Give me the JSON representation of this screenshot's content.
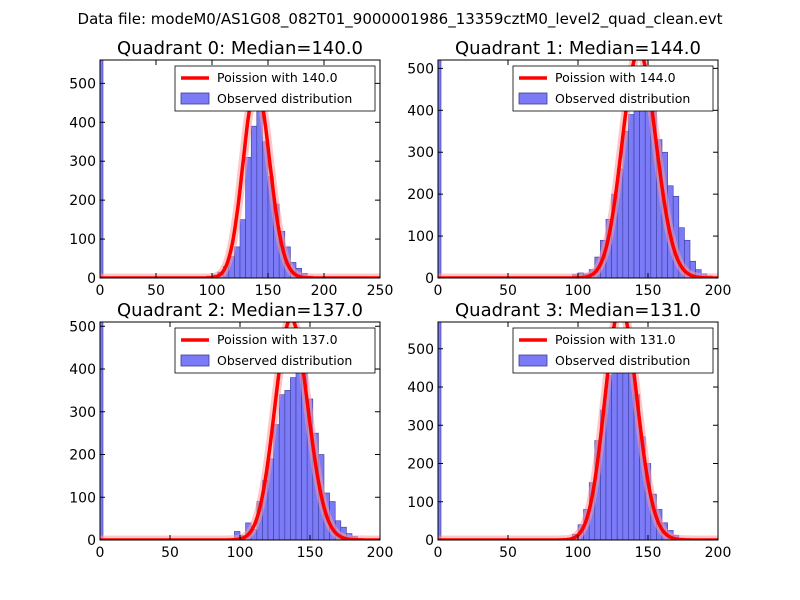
{
  "suptitle": "Data file: modeM0/AS1G08_082T01_9000001986_13359cztM0_level2_quad_clean.evt",
  "colors": {
    "hist_fill": "#7b7bf7",
    "hist_edge": "#3b3b9b",
    "poisson_line": "#ff0000",
    "poisson_halo": "#ff9a9a"
  },
  "chart_data": [
    {
      "type": "bar",
      "title": "Quadrant 0: Median=140.0",
      "median": 140.0,
      "xlim": [
        0,
        250
      ],
      "ylim": [
        0,
        560
      ],
      "xticks": [
        0,
        50,
        100,
        150,
        200,
        250
      ],
      "yticks": [
        0,
        100,
        200,
        300,
        400,
        500
      ],
      "bin_width": 5,
      "zero_bin": 560,
      "bins": [
        [
          95,
          5
        ],
        [
          100,
          8
        ],
        [
          105,
          15
        ],
        [
          110,
          30
        ],
        [
          115,
          55
        ],
        [
          120,
          80
        ],
        [
          125,
          150
        ],
        [
          130,
          310
        ],
        [
          135,
          390
        ],
        [
          140,
          430
        ],
        [
          145,
          350
        ],
        [
          150,
          260
        ],
        [
          155,
          190
        ],
        [
          160,
          120
        ],
        [
          165,
          80
        ],
        [
          170,
          40
        ],
        [
          175,
          25
        ],
        [
          180,
          12
        ],
        [
          185,
          5
        ],
        [
          190,
          2
        ]
      ],
      "legend": {
        "line": "Poission with 140.0",
        "hist": "Observed distribution"
      }
    },
    {
      "type": "bar",
      "title": "Quadrant 1: Median=144.0",
      "median": 144.0,
      "xlim": [
        0,
        200
      ],
      "ylim": [
        0,
        520
      ],
      "xticks": [
        0,
        50,
        100,
        150,
        200
      ],
      "yticks": [
        0,
        100,
        200,
        300,
        400,
        500
      ],
      "bin_width": 4,
      "zero_bin": 520,
      "bins": [
        [
          96,
          8
        ],
        [
          100,
          12
        ],
        [
          104,
          10
        ],
        [
          108,
          20
        ],
        [
          112,
          50
        ],
        [
          116,
          90
        ],
        [
          120,
          140
        ],
        [
          124,
          200
        ],
        [
          128,
          260
        ],
        [
          132,
          350
        ],
        [
          136,
          390
        ],
        [
          140,
          440
        ],
        [
          144,
          470
        ],
        [
          148,
          430
        ],
        [
          152,
          400
        ],
        [
          156,
          330
        ],
        [
          160,
          300
        ],
        [
          164,
          220
        ],
        [
          168,
          195
        ],
        [
          172,
          120
        ],
        [
          176,
          90
        ],
        [
          180,
          40
        ],
        [
          184,
          20
        ],
        [
          188,
          10
        ],
        [
          192,
          5
        ]
      ],
      "legend": {
        "line": "Poission with 144.0",
        "hist": "Observed distribution"
      }
    },
    {
      "type": "bar",
      "title": "Quadrant 2: Median=137.0",
      "median": 137.0,
      "xlim": [
        0,
        200
      ],
      "ylim": [
        0,
        510
      ],
      "xticks": [
        0,
        50,
        100,
        150,
        200
      ],
      "yticks": [
        0,
        100,
        200,
        300,
        400,
        500
      ],
      "bin_width": 4,
      "zero_bin": 510,
      "bins": [
        [
          96,
          20
        ],
        [
          100,
          10
        ],
        [
          104,
          40
        ],
        [
          108,
          25
        ],
        [
          112,
          90
        ],
        [
          116,
          140
        ],
        [
          120,
          190
        ],
        [
          124,
          270
        ],
        [
          128,
          340
        ],
        [
          132,
          350
        ],
        [
          136,
          380
        ],
        [
          140,
          450
        ],
        [
          144,
          430
        ],
        [
          148,
          330
        ],
        [
          152,
          250
        ],
        [
          156,
          200
        ],
        [
          160,
          110
        ],
        [
          164,
          90
        ],
        [
          168,
          45
        ],
        [
          172,
          30
        ],
        [
          176,
          15
        ],
        [
          180,
          8
        ],
        [
          184,
          4
        ]
      ],
      "legend": {
        "line": "Poission with 137.0",
        "hist": "Observed distribution"
      }
    },
    {
      "type": "bar",
      "title": "Quadrant 3: Median=131.0",
      "median": 131.0,
      "xlim": [
        0,
        200
      ],
      "ylim": [
        0,
        570
      ],
      "xticks": [
        0,
        50,
        100,
        150,
        200
      ],
      "yticks": [
        0,
        100,
        200,
        300,
        400,
        500
      ],
      "bin_width": 4,
      "zero_bin": 570,
      "bins": [
        [
          92,
          5
        ],
        [
          96,
          15
        ],
        [
          100,
          40
        ],
        [
          104,
          80
        ],
        [
          108,
          150
        ],
        [
          112,
          260
        ],
        [
          116,
          340
        ],
        [
          120,
          430
        ],
        [
          124,
          480
        ],
        [
          128,
          510
        ],
        [
          132,
          530
        ],
        [
          136,
          480
        ],
        [
          140,
          380
        ],
        [
          144,
          270
        ],
        [
          148,
          200
        ],
        [
          152,
          120
        ],
        [
          156,
          80
        ],
        [
          160,
          45
        ],
        [
          164,
          25
        ],
        [
          168,
          12
        ],
        [
          172,
          5
        ]
      ],
      "legend": {
        "line": "Poission with 131.0",
        "hist": "Observed distribution"
      }
    }
  ]
}
